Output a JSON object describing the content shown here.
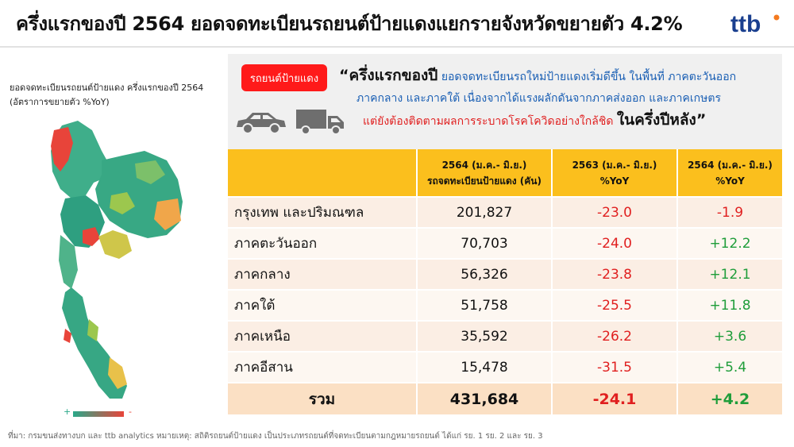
{
  "header": {
    "title": "ครึ่งแรกของปี 2564 ยอดจดทะเบียนรถยนต์ป้ายแดงแยกรายจังหวัดขยายตัว 4.2%",
    "logo_text": "ttb"
  },
  "map": {
    "caption_line1": "ยอดจดทะเบียนรถยนต์ป้ายแดง ครึ่งแรกของปี 2564",
    "caption_line2": "(อัตราการขยายตัว %YoY)",
    "legend_plus": "+",
    "legend_minus": "-",
    "colors": {
      "growth": "#2aa889",
      "mid": "#9cc74e",
      "flat": "#e8c14a",
      "decline": "#e8443a"
    }
  },
  "callout": {
    "badge": "รถยนต์ป้ายแดง",
    "quote_open": "“ครึ่งแรกของปี",
    "line1_text": " ยอดจดทะเบียนรถใหม่ป้ายแดงเริ่มดีขึ้น ในพื้นที่ ภาคตะวันออก",
    "line2_text": "ภาคกลาง และภาคใต้ เนื่องจากได้แรงผลักดันจากภาคส่งออก และภาคเกษตร",
    "line3_text": "แต่ยังต้องติดตามผลการระบาดโรคโควิดอย่างใกล้ชิด ",
    "quote_close": "ในครึ่งปีหลัง”",
    "icons": [
      "car-icon",
      "truck-icon"
    ]
  },
  "table": {
    "headers": [
      {
        "line1": "",
        "line2": ""
      },
      {
        "line1": "2564 (ม.ค.- มิ.ย.)",
        "line2": "รถจดทะเบียนป้ายแดง (คัน)"
      },
      {
        "line1": "2563 (ม.ค.- มิ.ย.)",
        "line2": "%YoY"
      },
      {
        "line1": "2564 (ม.ค.- มิ.ย.)",
        "line2": "%YoY"
      }
    ],
    "rows": [
      {
        "region": "กรุงเทพ และปริมณฑล",
        "units": "201,827",
        "yoy2563": "-23.0",
        "yoy2564": "-1.9"
      },
      {
        "region": "ภาคตะวันออก",
        "units": "70,703",
        "yoy2563": "-24.0",
        "yoy2564": "+12.2"
      },
      {
        "region": "ภาคกลาง",
        "units": "56,326",
        "yoy2563": "-23.8",
        "yoy2564": "+12.1"
      },
      {
        "region": "ภาคใต้",
        "units": "51,758",
        "yoy2563": "-25.5",
        "yoy2564": "+11.8"
      },
      {
        "region": "ภาคเหนือ",
        "units": "35,592",
        "yoy2563": "-26.2",
        "yoy2564": "+3.6"
      },
      {
        "region": "ภาคอีสาน",
        "units": "15,478",
        "yoy2563": "-31.5",
        "yoy2564": "+5.4"
      }
    ],
    "total": {
      "region": "รวม",
      "units": "431,684",
      "yoy2563": "-24.1",
      "yoy2564": "+4.2"
    }
  },
  "footer": {
    "text": "ที่มา: กรมขนส่งทางบก และ ttb analytics หมายเหตุ:  สถิติรถยนต์ป้ายแดง เป็นประเภทรถยนต์ที่จดทะเบียนตามกฎหมายรถยนต์ ได้แก่ รย. 1  รย. 2 และ รย. 3"
  }
}
